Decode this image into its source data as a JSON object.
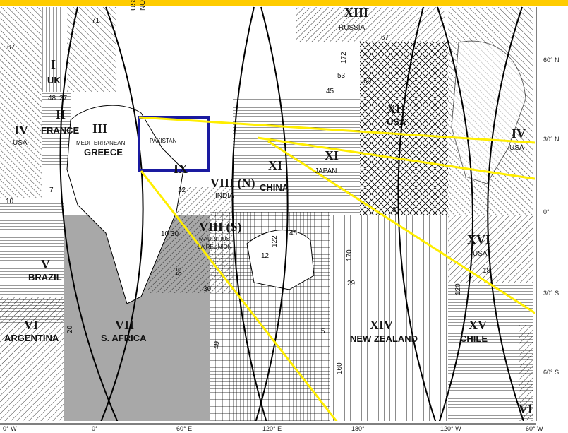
{
  "map": {
    "zones": [
      {
        "id": "I",
        "name": "UK",
        "extra": [
          "48",
          "27"
        ]
      },
      {
        "id": "II",
        "name": "FRANCE"
      },
      {
        "id": "III",
        "name": "GREECE",
        "sub": "MEDITERRANEAN"
      },
      {
        "id": "IV",
        "name": "USA",
        "id_right": "IV",
        "name_right": "USA",
        "number": "67"
      },
      {
        "id": "V",
        "name": "BRAZIL"
      },
      {
        "id": "VI",
        "name": "ARGENTINA",
        "id_right": "VI"
      },
      {
        "id": "VII",
        "name": "S. AFRICA"
      },
      {
        "id": "VIII (N)",
        "name": "INDIA"
      },
      {
        "id": "VIII (S)",
        "name": "LA REUNION",
        "sub": "MAURITIUS"
      },
      {
        "id": "IX",
        "name": "PAKISTAN"
      },
      {
        "id": "XI",
        "name": "JAPAN",
        "sub": "CHINA",
        "id_second": "XI"
      },
      {
        "id": "XII",
        "name": "USA"
      },
      {
        "id": "XIII",
        "name": "RUSSIA"
      },
      {
        "id": "XIV",
        "name": "NEW ZEALAND"
      },
      {
        "id": "XV",
        "name": "CHILE"
      },
      {
        "id": "XVI",
        "name": "USA"
      },
      {
        "id": "USSR",
        "name": "NORWAY"
      }
    ],
    "numbers": {
      "n71": "71",
      "n67a": "67",
      "n7": "7",
      "n10": "10",
      "n12": "12",
      "n1030": "10 30",
      "n55": "55",
      "n30": "30",
      "n20": "20",
      "n49": "49",
      "n18": "18",
      "n120": "120",
      "n170": "170",
      "n29": "29",
      "n160": "160",
      "n172": "172",
      "n53": "53",
      "n45": "45",
      "n68": "68",
      "n8": "8",
      "n45b": "45",
      "n5": "5",
      "n12b": "12",
      "n67b": "67",
      "n122": "122"
    },
    "lat_labels": [
      "60° N",
      "30° N",
      "0°",
      "30° S",
      "60° S"
    ],
    "lon_labels": [
      "0° W",
      "0°",
      "60° E",
      "120° E",
      "180°",
      "120° W",
      "60° W"
    ],
    "colors": {
      "top_band": "#ffcc00",
      "highlight_box": "#1a1aa0",
      "lines": "#ffee00",
      "grid": "#000000"
    }
  }
}
